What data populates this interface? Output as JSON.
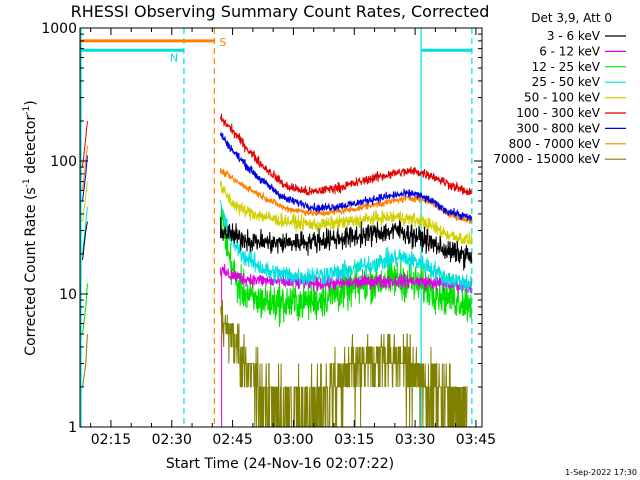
{
  "chart_data": {
    "type": "line",
    "title": "RHESSI Observing Summary Count Rates, Corrected",
    "xlabel": "Start Time (24-Nov-16 02:07:22)",
    "ylabel": "Corrected Count Rate (s⁻¹ detector⁻¹)",
    "ylabel_main": "Corrected Count Rate (s",
    "ylabel_sup1": "-1",
    "ylabel_mid": " detector",
    "ylabel_sup2": "-1",
    "ylabel_end": ")",
    "x_unit": "minutes of day",
    "xlim": [
      127.37,
      226.5
    ],
    "ylim": [
      1,
      1000
    ],
    "y_scale": "log",
    "x_ticks": [
      {
        "value": 135,
        "label": "02:15"
      },
      {
        "value": 150,
        "label": "02:30"
      },
      {
        "value": 165,
        "label": "02:45"
      },
      {
        "value": 180,
        "label": "03:00"
      },
      {
        "value": 195,
        "label": "03:15"
      },
      {
        "value": 210,
        "label": "03:30"
      },
      {
        "value": 225,
        "label": "03:45"
      }
    ],
    "y_ticks": [
      {
        "value": 1,
        "label": "1"
      },
      {
        "value": 10,
        "label": "10"
      },
      {
        "value": 100,
        "label": "100"
      },
      {
        "value": 1000,
        "label": "1000"
      }
    ],
    "legend": {
      "title": "Det 3,9, Att 0",
      "placement": "right",
      "entries": [
        {
          "label": "3 - 6 keV",
          "color": "#000000"
        },
        {
          "label": "6 - 12 keV",
          "color": "#e000e0"
        },
        {
          "label": "12 - 25 keV",
          "color": "#00e000"
        },
        {
          "label": "25 - 50 keV",
          "color": "#00e0e0"
        },
        {
          "label": "50 - 100 keV",
          "color": "#d0d000"
        },
        {
          "label": "100 - 300 keV",
          "color": "#e00000"
        },
        {
          "label": "300 - 800 keV",
          "color": "#0000e0"
        },
        {
          "label": "800 - 7000 keV",
          "color": "#ff8000"
        },
        {
          "label": "7000 - 15000 keV",
          "color": "#808000"
        }
      ]
    },
    "annotations": {
      "saa": {
        "label": "S",
        "color": "#ff8000",
        "start": 127.37,
        "end": 160.5,
        "level": 800
      },
      "night": [
        {
          "label": "N",
          "color": "#00e0e0",
          "start": 127.37,
          "end": 153.0,
          "level": 680
        },
        {
          "label": "",
          "color": "#00e0e0",
          "start": 211.5,
          "end": 224.0,
          "level": 680
        }
      ],
      "dashed_lines": [
        {
          "x": 153.0,
          "color": "#00e0e0"
        },
        {
          "x": 160.5,
          "color": "#ff8000"
        },
        {
          "x": 224.0,
          "color": "#00e0e0"
        }
      ],
      "solid_lines": [
        {
          "x": 127.6,
          "color": "#00e0e0"
        },
        {
          "x": 211.5,
          "color": "#00e0e0"
        }
      ]
    },
    "series": [
      {
        "name": "3 - 6 keV",
        "color": "#000000",
        "noise": 0.16,
        "points": [
          [
            162,
            30
          ],
          [
            166,
            27
          ],
          [
            170,
            25
          ],
          [
            176,
            24
          ],
          [
            185,
            25
          ],
          [
            195,
            27
          ],
          [
            201,
            29
          ],
          [
            206,
            30
          ],
          [
            212,
            26
          ],
          [
            218,
            21
          ],
          [
            224,
            19
          ]
        ]
      },
      {
        "name": "6 - 12 keV",
        "color": "#e000e0",
        "noise": 0.1,
        "points": [
          [
            162,
            15
          ],
          [
            164,
            14
          ],
          [
            168,
            13
          ],
          [
            174,
            12.5
          ],
          [
            184,
            12
          ],
          [
            192,
            12
          ],
          [
            200,
            12.5
          ],
          [
            210,
            12.5
          ],
          [
            216,
            12
          ],
          [
            224,
            11.5
          ]
        ]
      },
      {
        "name": "12 - 25 keV",
        "color": "#00e000",
        "noise": 0.28,
        "points": [
          [
            162,
            43
          ],
          [
            164,
            20
          ],
          [
            166,
            12
          ],
          [
            170,
            9
          ],
          [
            178,
            8.5
          ],
          [
            186,
            9
          ],
          [
            194,
            11
          ],
          [
            200,
            12.5
          ],
          [
            206,
            13
          ],
          [
            212,
            11.5
          ],
          [
            218,
            9.5
          ],
          [
            224,
            8.5
          ]
        ]
      },
      {
        "name": "25 - 50 keV",
        "color": "#00e0e0",
        "noise": 0.14,
        "points": [
          [
            162,
            47
          ],
          [
            164,
            28
          ],
          [
            168,
            19
          ],
          [
            174,
            14.5
          ],
          [
            182,
            13.5
          ],
          [
            192,
            14.5
          ],
          [
            200,
            17
          ],
          [
            206,
            19
          ],
          [
            212,
            17
          ],
          [
            218,
            13
          ],
          [
            224,
            12
          ]
        ]
      },
      {
        "name": "50 - 100 keV",
        "color": "#d0d000",
        "noise": 0.1,
        "points": [
          [
            162,
            64
          ],
          [
            165,
            48
          ],
          [
            168,
            42
          ],
          [
            176,
            36
          ],
          [
            186,
            33
          ],
          [
            194,
            35
          ],
          [
            200,
            37
          ],
          [
            206,
            38
          ],
          [
            212,
            35
          ],
          [
            218,
            28
          ],
          [
            224,
            25
          ]
        ]
      },
      {
        "name": "100 - 300 keV",
        "color": "#e00000",
        "noise": 0.07,
        "points": [
          [
            162,
            210
          ],
          [
            165,
            170
          ],
          [
            168,
            130
          ],
          [
            172,
            95
          ],
          [
            178,
            65
          ],
          [
            184,
            58
          ],
          [
            192,
            64
          ],
          [
            200,
            75
          ],
          [
            206,
            82
          ],
          [
            210,
            84
          ],
          [
            214,
            78
          ],
          [
            218,
            68
          ],
          [
            224,
            56
          ]
        ]
      },
      {
        "name": "300 - 800 keV",
        "color": "#0000e0",
        "noise": 0.06,
        "points": [
          [
            162,
            160
          ],
          [
            165,
            120
          ],
          [
            168,
            95
          ],
          [
            172,
            72
          ],
          [
            178,
            52
          ],
          [
            186,
            44
          ],
          [
            194,
            47
          ],
          [
            200,
            52
          ],
          [
            206,
            56
          ],
          [
            210,
            57
          ],
          [
            214,
            50
          ],
          [
            218,
            42
          ],
          [
            224,
            37
          ]
        ]
      },
      {
        "name": "800 - 7000 keV",
        "color": "#ff8000",
        "noise": 0.05,
        "points": [
          [
            162,
            85
          ],
          [
            166,
            70
          ],
          [
            172,
            55
          ],
          [
            178,
            44
          ],
          [
            186,
            40
          ],
          [
            194,
            43
          ],
          [
            200,
            47
          ],
          [
            206,
            51
          ],
          [
            210,
            53
          ],
          [
            214,
            49
          ],
          [
            218,
            40
          ],
          [
            224,
            35
          ]
        ]
      },
      {
        "name": "7000 - 15000 keV",
        "color": "#808000",
        "noise": 0.35,
        "points": [
          [
            162,
            7
          ],
          [
            166,
            4
          ],
          [
            170,
            2.2
          ],
          [
            176,
            1.4
          ],
          [
            184,
            1.3
          ],
          [
            192,
            2.2
          ],
          [
            200,
            3.2
          ],
          [
            204,
            3.6
          ],
          [
            208,
            2.8
          ],
          [
            214,
            2.0
          ],
          [
            220,
            1.6
          ],
          [
            223,
            1.4
          ]
        ]
      }
    ],
    "pre_gap_series": [
      {
        "color": "#e00000",
        "points": [
          [
            128.0,
            90
          ],
          [
            128.8,
            150
          ],
          [
            129.2,
            200
          ]
        ]
      },
      {
        "color": "#ff8000",
        "points": [
          [
            128.0,
            60
          ],
          [
            128.8,
            100
          ],
          [
            129.2,
            130
          ]
        ]
      },
      {
        "color": "#0000e0",
        "points": [
          [
            128.0,
            50
          ],
          [
            128.8,
            80
          ],
          [
            129.2,
            110
          ]
        ]
      },
      {
        "color": "#d0d000",
        "points": [
          [
            128.0,
            35
          ],
          [
            128.8,
            55
          ],
          [
            129.2,
            70
          ]
        ]
      },
      {
        "color": "#00e0e0",
        "points": [
          [
            128.0,
            20
          ],
          [
            128.8,
            35
          ],
          [
            129.2,
            45
          ]
        ]
      },
      {
        "color": "#000000",
        "points": [
          [
            128.0,
            18
          ],
          [
            128.8,
            30
          ],
          [
            129.2,
            35
          ]
        ]
      },
      {
        "color": "#00e000",
        "points": [
          [
            128.0,
            5
          ],
          [
            128.8,
            8
          ],
          [
            129.2,
            12
          ]
        ]
      },
      {
        "color": "#808000",
        "points": [
          [
            128.0,
            2
          ],
          [
            128.8,
            3
          ],
          [
            129.2,
            5
          ]
        ]
      }
    ],
    "footer": "1-Sep-2022 17:30"
  }
}
